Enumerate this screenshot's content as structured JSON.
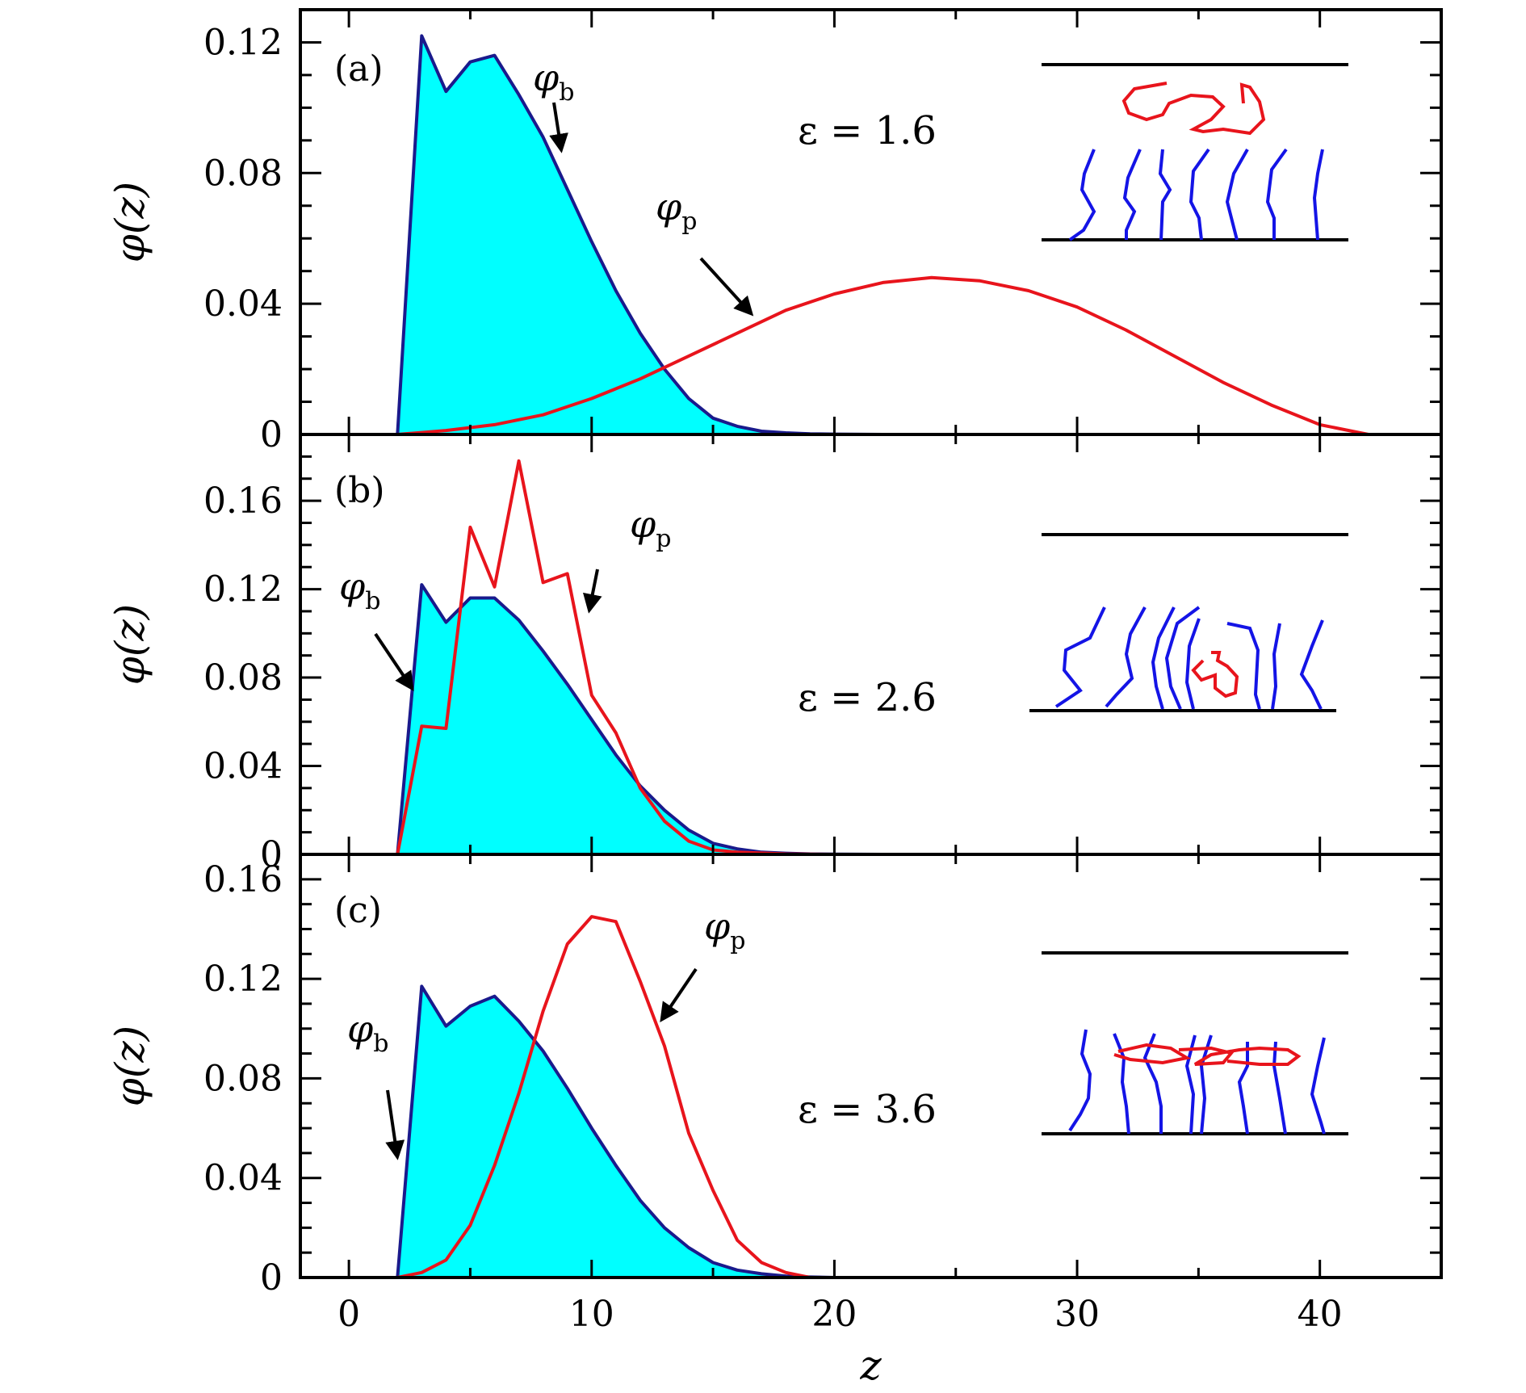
{
  "chart_data": [
    {
      "type": "area",
      "panel_label": "(a)",
      "annotation": "ε = 1.6",
      "ylabel": "φ(z)",
      "xlim": [
        -2,
        45
      ],
      "ylim": [
        0,
        0.13
      ],
      "yticks": [
        0,
        0.04,
        0.08,
        0.12
      ],
      "ytick_labels": [
        "0",
        "0.04",
        "0.08",
        "0.12"
      ],
      "grid": false,
      "series": [
        {
          "name": "φb",
          "label_base": "φ",
          "label_sub": "b",
          "color": "#1a1a8c",
          "fill": "#00ffff",
          "x": [
            2,
            3,
            4,
            5,
            6,
            7,
            8,
            9,
            10,
            11,
            12,
            13,
            14,
            15,
            16,
            17,
            18,
            19,
            20,
            22
          ],
          "y": [
            0,
            0.122,
            0.105,
            0.114,
            0.116,
            0.104,
            0.091,
            0.075,
            0.059,
            0.044,
            0.031,
            0.02,
            0.011,
            0.005,
            0.0025,
            0.001,
            0.0005,
            0.0002,
            0.0001,
            0
          ]
        },
        {
          "name": "φp",
          "label_base": "φ",
          "label_sub": "p",
          "color": "#e8141c",
          "x": [
            2,
            4,
            6,
            8,
            10,
            12,
            14,
            16,
            18,
            20,
            22,
            24,
            26,
            28,
            30,
            32,
            34,
            36,
            38,
            40,
            42
          ],
          "y": [
            0,
            0.0012,
            0.003,
            0.006,
            0.011,
            0.017,
            0.024,
            0.031,
            0.038,
            0.043,
            0.0465,
            0.048,
            0.047,
            0.044,
            0.039,
            0.032,
            0.024,
            0.016,
            0.009,
            0.003,
            0
          ]
        }
      ]
    },
    {
      "type": "area",
      "panel_label": "(b)",
      "annotation": "ε = 2.6",
      "ylabel": "φ(z)",
      "xlim": [
        -2,
        45
      ],
      "ylim": [
        0,
        0.19
      ],
      "yticks": [
        0,
        0.04,
        0.08,
        0.12,
        0.16
      ],
      "ytick_labels": [
        "0",
        "0.04",
        "0.08",
        "0.12",
        "0.16"
      ],
      "grid": false,
      "series": [
        {
          "name": "φb",
          "label_base": "φ",
          "label_sub": "b",
          "color": "#1a1a8c",
          "fill": "#00ffff",
          "x": [
            2,
            3,
            4,
            5,
            6,
            7,
            8,
            9,
            10,
            11,
            12,
            13,
            14,
            15,
            16,
            17,
            18,
            19,
            20,
            22
          ],
          "y": [
            0,
            0.122,
            0.105,
            0.116,
            0.116,
            0.106,
            0.092,
            0.077,
            0.061,
            0.045,
            0.031,
            0.02,
            0.011,
            0.005,
            0.0025,
            0.001,
            0.0005,
            0.0002,
            0.0001,
            0
          ]
        },
        {
          "name": "φp",
          "label_base": "φ",
          "label_sub": "p",
          "color": "#e8141c",
          "x": [
            2,
            3,
            4,
            5,
            6,
            7,
            8,
            9,
            10,
            11,
            12,
            13,
            14,
            15,
            16,
            18,
            20
          ],
          "y": [
            0,
            0.058,
            0.057,
            0.148,
            0.121,
            0.178,
            0.123,
            0.127,
            0.072,
            0.055,
            0.03,
            0.015,
            0.006,
            0.002,
            0.001,
            0.0002,
            0
          ]
        }
      ]
    },
    {
      "type": "area",
      "panel_label": "(c)",
      "annotation": "ε = 3.6",
      "ylabel": "φ(z)",
      "xlabel": "z",
      "xlim": [
        -2,
        45
      ],
      "ylim": [
        0,
        0.17
      ],
      "xticks": [
        0,
        10,
        20,
        30,
        40
      ],
      "xtick_labels": [
        "0",
        "10",
        "20",
        "30",
        "40"
      ],
      "yticks": [
        0,
        0.04,
        0.08,
        0.12,
        0.16
      ],
      "ytick_labels": [
        "0",
        "0.04",
        "0.08",
        "0.12",
        "0.16"
      ],
      "grid": false,
      "series": [
        {
          "name": "φb",
          "label_base": "φ",
          "label_sub": "b",
          "color": "#1a1a8c",
          "fill": "#00ffff",
          "x": [
            2,
            3,
            4,
            5,
            6,
            7,
            8,
            9,
            10,
            11,
            12,
            13,
            14,
            15,
            16,
            17,
            18,
            19,
            20
          ],
          "y": [
            0,
            0.117,
            0.101,
            0.109,
            0.113,
            0.103,
            0.091,
            0.076,
            0.06,
            0.045,
            0.031,
            0.02,
            0.012,
            0.006,
            0.003,
            0.0015,
            0.0006,
            0.0002,
            0
          ]
        },
        {
          "name": "φp",
          "label_base": "φ",
          "label_sub": "p",
          "color": "#e8141c",
          "x": [
            2,
            3,
            4,
            5,
            6,
            7,
            8,
            9,
            10,
            11,
            12,
            13,
            14,
            15,
            16,
            17,
            18,
            19
          ],
          "y": [
            0,
            0.002,
            0.007,
            0.021,
            0.045,
            0.074,
            0.107,
            0.134,
            0.145,
            0.143,
            0.119,
            0.093,
            0.058,
            0.035,
            0.015,
            0.006,
            0.002,
            0
          ]
        }
      ]
    }
  ],
  "colors": {
    "axis": "#000000",
    "brush": "#1414e6",
    "polymer": "#e8141c",
    "wall": "#000000"
  }
}
